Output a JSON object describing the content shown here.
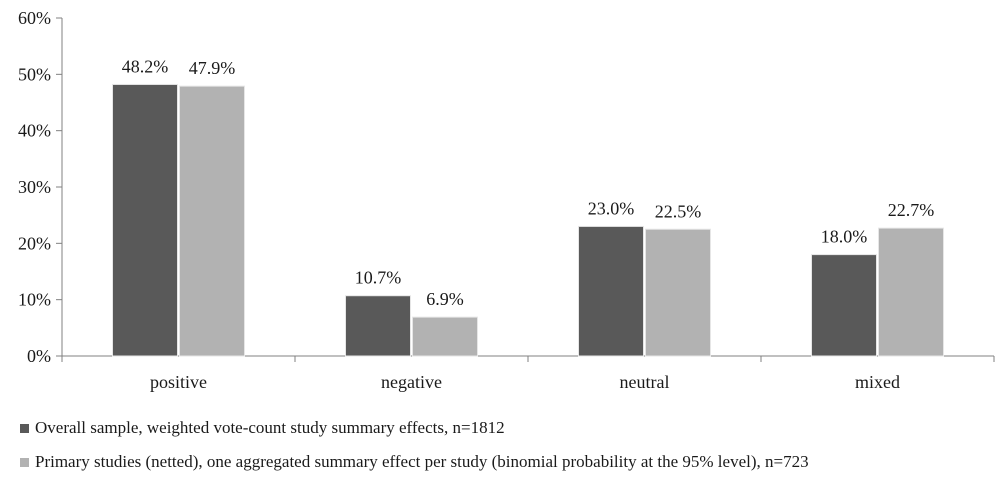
{
  "chart_data": {
    "type": "bar",
    "categories": [
      "positive",
      "negative",
      "neutral",
      "mixed"
    ],
    "series": [
      {
        "name": "Overall sample, weighted vote-count study summary effects, n=1812",
        "values": [
          48.2,
          10.7,
          23.0,
          18.0
        ],
        "labels": [
          "48.2%",
          "10.7%",
          "23.0%",
          "18.0%"
        ],
        "color": "#595959"
      },
      {
        "name": "Primary studies (netted), one aggregated summary effect per study (binomial probability at the 95% level), n=723",
        "values": [
          47.9,
          6.9,
          22.5,
          22.7
        ],
        "labels": [
          "47.9%",
          "6.9%",
          "22.5%",
          "22.7%"
        ],
        "color": "#b2b2b2"
      }
    ],
    "yticks": [
      "0%",
      "10%",
      "20%",
      "30%",
      "40%",
      "50%",
      "60%"
    ],
    "ylim": [
      0,
      60
    ],
    "grid": false,
    "legend_position": "bottom"
  }
}
